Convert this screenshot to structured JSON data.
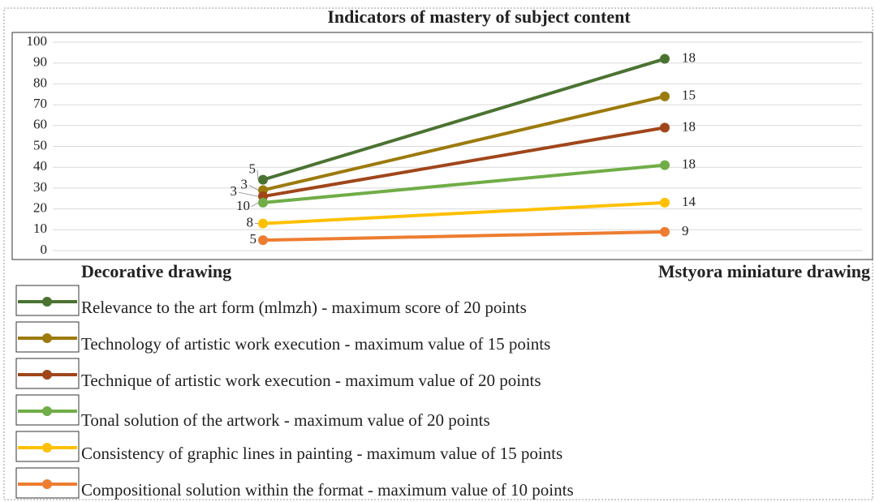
{
  "chart_data": {
    "type": "line",
    "stacked": true,
    "title": "Indicators of mastery of subject content",
    "categories": [
      "Decorative drawing",
      "Mstyora miniature drawing"
    ],
    "series": [
      {
        "name": "Relevance to the art form (mlmzh) - maximum score of 20 points",
        "color": "#4a7332",
        "values": [
          5,
          18
        ]
      },
      {
        "name": "Technology of artistic work execution - maximum value of 15 points",
        "color": "#9c7a0c",
        "values": [
          3,
          15
        ]
      },
      {
        "name": "Technique of artistic work execution - maximum value of 20 points",
        "color": "#a0461a",
        "values": [
          3,
          18
        ]
      },
      {
        "name": "Tonal solution of the artwork - maximum value of 20 points",
        "color": "#70ad47",
        "values": [
          10,
          18
        ]
      },
      {
        "name": "Consistency of graphic lines in painting - maximum value of 15 points",
        "color": "#ffc000",
        "values": [
          8,
          14
        ]
      },
      {
        "name": "Compositional solution within the format - maximum value of 10 points",
        "color": "#ed7d31",
        "values": [
          5,
          9
        ]
      }
    ],
    "ylim": [
      0,
      100
    ],
    "yticks": [
      0,
      10,
      20,
      30,
      40,
      50,
      60,
      70,
      80,
      90,
      100
    ],
    "grid": true
  }
}
